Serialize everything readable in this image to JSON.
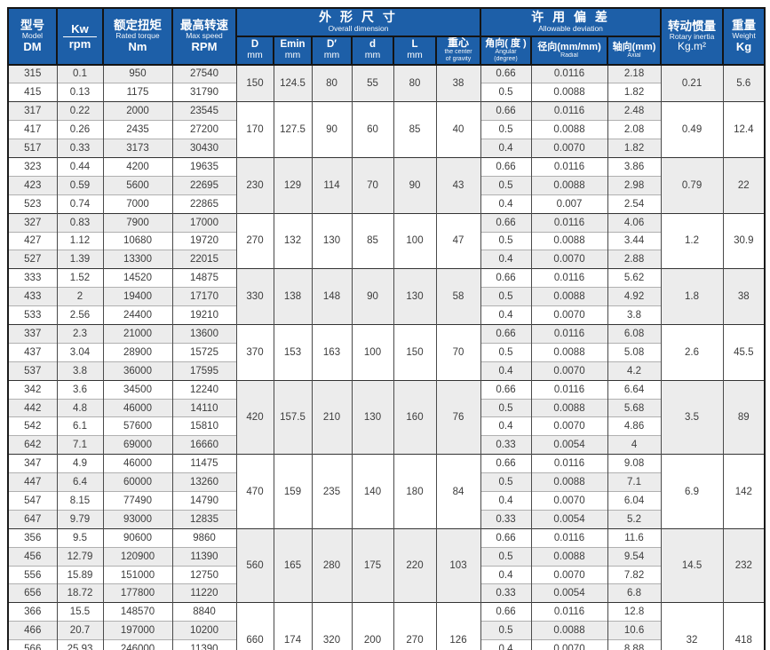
{
  "colors": {
    "header_bg": "#1d5fa8",
    "header_text": "#ffffff",
    "stripe_gray": "#ececec",
    "row_white": "#ffffff",
    "outer_border": "#1a1a1a",
    "body_text": "#3c3c3c"
  },
  "header": {
    "model": {
      "zh": "型号",
      "en": "Model",
      "unit": "DM"
    },
    "kw": {
      "top": "Kw",
      "bottom": "rpm"
    },
    "torque": {
      "zh": "额定扭矩",
      "en": "Rated torque",
      "unit": "Nm"
    },
    "speed": {
      "zh": "最高转速",
      "en": "Max speed",
      "unit": "RPM"
    },
    "overall": {
      "zh": "外 形 尺 寸",
      "en": "Overall dimension"
    },
    "deviation": {
      "zh": "许 用 偏 差",
      "en": "Allowable deviation"
    },
    "dims": [
      {
        "top": "D",
        "unit": "mm"
      },
      {
        "top": "Emin",
        "unit": "mm"
      },
      {
        "top": "D′",
        "unit": "mm"
      },
      {
        "top": "d",
        "unit": "mm"
      },
      {
        "top": "L",
        "unit": "mm"
      },
      {
        "top": "重心",
        "sub1": "the center",
        "sub2": "of gravity"
      }
    ],
    "dev_cols": [
      {
        "label": "角向( 度 )",
        "sub1": "Angular",
        "sub2": "(degree)"
      },
      {
        "label": "径向(mm/mm)",
        "sub1": "Radial"
      },
      {
        "label": "轴向(mm)",
        "sub1": "Axial"
      }
    ],
    "inertia": {
      "zh": "转动惯量",
      "en": "Rotary inertia",
      "unit": "Kg.m²"
    },
    "weight": {
      "zh": "重量",
      "en": "Weight",
      "unit": "Kg"
    }
  },
  "groups": [
    {
      "D": "150",
      "Emin": "124.5",
      "Dprime": "80",
      "d": "55",
      "L": "80",
      "cg": "38",
      "inertia": "0.21",
      "weight": "5.6",
      "rows": [
        [
          "315",
          "0.1",
          "950",
          "27540",
          "0.66",
          "0.0116",
          "2.18"
        ],
        [
          "415",
          "0.13",
          "1175",
          "31790",
          "0.5",
          "0.0088",
          "1.82"
        ]
      ]
    },
    {
      "D": "170",
      "Emin": "127.5",
      "Dprime": "90",
      "d": "60",
      "L": "85",
      "cg": "40",
      "inertia": "0.49",
      "weight": "12.4",
      "rows": [
        [
          "317",
          "0.22",
          "2000",
          "23545",
          "0.66",
          "0.0116",
          "2.48"
        ],
        [
          "417",
          "0.26",
          "2435",
          "27200",
          "0.5",
          "0.0088",
          "2.08"
        ],
        [
          "517",
          "0.33",
          "3173",
          "30430",
          "0.4",
          "0.0070",
          "1.82"
        ]
      ]
    },
    {
      "D": "230",
      "Emin": "129",
      "Dprime": "114",
      "d": "70",
      "L": "90",
      "cg": "43",
      "inertia": "0.79",
      "weight": "22",
      "rows": [
        [
          "323",
          "0.44",
          "4200",
          "19635",
          "0.66",
          "0.0116",
          "3.86"
        ],
        [
          "423",
          "0.59",
          "5600",
          "22695",
          "0.5",
          "0.0088",
          "2.98"
        ],
        [
          "523",
          "0.74",
          "7000",
          "22865",
          "0.4",
          "0.007",
          "2.54"
        ]
      ]
    },
    {
      "D": "270",
      "Emin": "132",
      "Dprime": "130",
      "d": "85",
      "L": "100",
      "cg": "47",
      "inertia": "1.2",
      "weight": "30.9",
      "rows": [
        [
          "327",
          "0.83",
          "7900",
          "17000",
          "0.66",
          "0.0116",
          "4.06"
        ],
        [
          "427",
          "1.12",
          "10680",
          "19720",
          "0.5",
          "0.0088",
          "3.44"
        ],
        [
          "527",
          "1.39",
          "13300",
          "22015",
          "0.4",
          "0.0070",
          "2.88"
        ]
      ]
    },
    {
      "D": "330",
      "Emin": "138",
      "Dprime": "148",
      "d": "90",
      "L": "130",
      "cg": "58",
      "inertia": "1.8",
      "weight": "38",
      "rows": [
        [
          "333",
          "1.52",
          "14520",
          "14875",
          "0.66",
          "0.0116",
          "5.62"
        ],
        [
          "433",
          "2",
          "19400",
          "17170",
          "0.5",
          "0.0088",
          "4.92"
        ],
        [
          "533",
          "2.56",
          "24400",
          "19210",
          "0.4",
          "0.0070",
          "3.8"
        ]
      ]
    },
    {
      "D": "370",
      "Emin": "153",
      "Dprime": "163",
      "d": "100",
      "L": "150",
      "cg": "70",
      "inertia": "2.6",
      "weight": "45.5",
      "rows": [
        [
          "337",
          "2.3",
          "21000",
          "13600",
          "0.66",
          "0.0116",
          "6.08"
        ],
        [
          "437",
          "3.04",
          "28900",
          "15725",
          "0.5",
          "0.0088",
          "5.08"
        ],
        [
          "537",
          "3.8",
          "36000",
          "17595",
          "0.4",
          "0.0070",
          "4.2"
        ]
      ]
    },
    {
      "D": "420",
      "Emin": "157.5",
      "Dprime": "210",
      "d": "130",
      "L": "160",
      "cg": "76",
      "inertia": "3.5",
      "weight": "89",
      "rows": [
        [
          "342",
          "3.6",
          "34500",
          "12240",
          "0.66",
          "0.0116",
          "6.64"
        ],
        [
          "442",
          "4.8",
          "46000",
          "14110",
          "0.5",
          "0.0088",
          "5.68"
        ],
        [
          "542",
          "6.1",
          "57600",
          "15810",
          "0.4",
          "0.0070",
          "4.86"
        ],
        [
          "642",
          "7.1",
          "69000",
          "16660",
          "0.33",
          "0.0054",
          "4"
        ]
      ]
    },
    {
      "D": "470",
      "Emin": "159",
      "Dprime": "235",
      "d": "140",
      "L": "180",
      "cg": "84",
      "inertia": "6.9",
      "weight": "142",
      "rows": [
        [
          "347",
          "4.9",
          "46000",
          "11475",
          "0.66",
          "0.0116",
          "9.08"
        ],
        [
          "447",
          "6.4",
          "60000",
          "13260",
          "0.5",
          "0.0088",
          "7.1"
        ],
        [
          "547",
          "8.15",
          "77490",
          "14790",
          "0.4",
          "0.0070",
          "6.04"
        ],
        [
          "647",
          "9.79",
          "93000",
          "12835",
          "0.33",
          "0.0054",
          "5.2"
        ]
      ]
    },
    {
      "D": "560",
      "Emin": "165",
      "Dprime": "280",
      "d": "175",
      "L": "220",
      "cg": "103",
      "inertia": "14.5",
      "weight": "232",
      "rows": [
        [
          "356",
          "9.5",
          "90600",
          "9860",
          "0.66",
          "0.0116",
          "11.6"
        ],
        [
          "456",
          "12.79",
          "120900",
          "11390",
          "0.5",
          "0.0088",
          "9.54"
        ],
        [
          "556",
          "15.89",
          "151000",
          "12750",
          "0.4",
          "0.0070",
          "7.82"
        ],
        [
          "656",
          "18.72",
          "177800",
          "11220",
          "0.33",
          "0.0054",
          "6.8"
        ]
      ]
    },
    {
      "D": "660",
      "Emin": "174",
      "Dprime": "320",
      "d": "200",
      "L": "270",
      "cg": "126",
      "inertia": "32",
      "weight": "418",
      "rows": [
        [
          "366",
          "15.5",
          "148570",
          "8840",
          "0.66",
          "0.0116",
          "12.8"
        ],
        [
          "466",
          "20.7",
          "197000",
          "10200",
          "0.5",
          "0.0088",
          "10.6"
        ],
        [
          "566",
          "25.93",
          "246000",
          "11390",
          "0.4",
          "0.0070",
          "8.88"
        ],
        [
          "666",
          "30.99",
          "294500",
          "8585",
          "0.33",
          "0.0054",
          "8"
        ]
      ]
    }
  ]
}
